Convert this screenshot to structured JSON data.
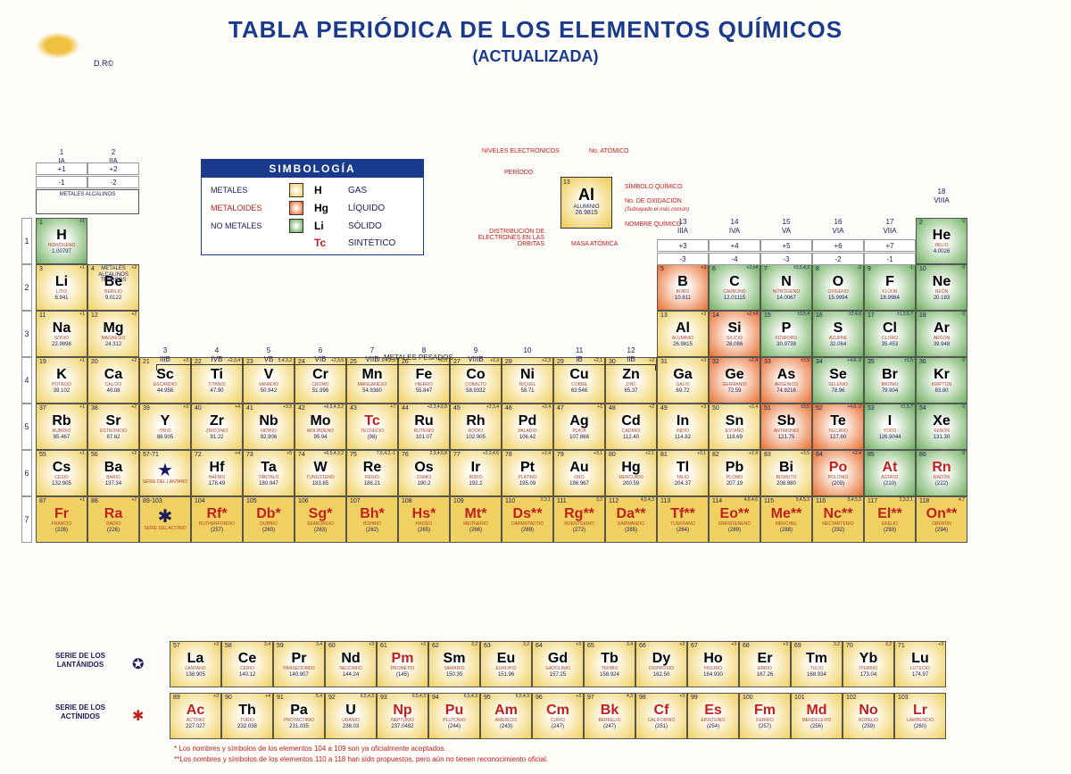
{
  "title": "TABLA PERIÓDICA DE LOS ELEMENTOS QUÍMICOS",
  "subtitle": "(ACTUALIZADA)",
  "dr": "D.R©",
  "legend": {
    "hdr": "SIMBOLOGÍA",
    "rows": [
      {
        "cat": "METALES",
        "swatch": "sw-m",
        "sym": "H",
        "state": "GAS"
      },
      {
        "cat": "METALOIDES",
        "swatch": "sw-ml",
        "sym": "Hg",
        "state": "LÍQUIDO"
      },
      {
        "cat": "NO METALES",
        "swatch": "sw-nm",
        "sym": "Li",
        "state": "SÓLIDO"
      },
      {
        "cat": "",
        "swatch": "",
        "sym": "Tc",
        "state": "SINTÉTICO",
        "red": true
      }
    ]
  },
  "key": {
    "niveles": "NIVELES ELECTRÓNICOS",
    "atomico": "No. ATÓMICO",
    "periodo": "PERÍODO",
    "simbolo": "SÍMBOLO QUÍMICO",
    "oxid": "No. DE OXIDACIÓN",
    "oxid2": "(Subrayado el más común)",
    "dist": "DISTRIBUCIÓN DE ELECTRONES EN LAS ÓRBITAS",
    "masa": "MASA ATÓMICA",
    "nombre": "NOMBRE QUÍMICO",
    "cell": {
      "n": "13",
      "s": "Al",
      "nm": "ALUMINIO",
      "m": "26.9815"
    }
  },
  "groups": [
    "1\nIA",
    "2\nIIA",
    "3\nIIIB",
    "4\nIVB",
    "5\nVB",
    "6\nVIB",
    "7\nVIIB",
    "8",
    "9\nVIIIB",
    "10",
    "11\nIB",
    "12\nIIB",
    "13\nIIIA",
    "14\nIVA",
    "15\nVA",
    "16\nVIA",
    "17\nVIIA",
    "18\nVIIIA"
  ],
  "ox_top": [
    "+1",
    "+2",
    "",
    "",
    "",
    "",
    "",
    "",
    "",
    "",
    "",
    "",
    "+3",
    "+4",
    "+5",
    "+6",
    "+7",
    ""
  ],
  "ox_bot": [
    "-1",
    "-2",
    "",
    "",
    "",
    "",
    "",
    "",
    "",
    "",
    "",
    "",
    "-3",
    "-4",
    "-3",
    "-2",
    "-1",
    ""
  ],
  "side": {
    "metalk": "METALES ALCALINOS",
    "metalk2": "METALES ALCALINOS TÉRREOS",
    "pesados": "METALES PESADOS"
  },
  "elements": [
    [
      {
        "n": 1,
        "s": "H",
        "nm": "HIDRÓGENO",
        "m": "1.00797",
        "c": "nm",
        "ox": "±1"
      },
      null,
      null,
      null,
      null,
      null,
      null,
      null,
      null,
      null,
      null,
      null,
      null,
      null,
      null,
      null,
      null,
      {
        "n": 2,
        "s": "He",
        "nm": "HELIO",
        "m": "4.0026",
        "c": "nm",
        "ox": "0"
      }
    ],
    [
      {
        "n": 3,
        "s": "Li",
        "nm": "LITIO",
        "m": "6.941",
        "c": "m",
        "ox": "+1"
      },
      {
        "n": 4,
        "s": "Be",
        "nm": "BERILIO",
        "m": "9.0122",
        "c": "m",
        "ox": "+2"
      },
      null,
      null,
      null,
      null,
      null,
      null,
      null,
      null,
      null,
      null,
      {
        "n": 5,
        "s": "B",
        "nm": "BORO",
        "m": "10.811",
        "c": "ml",
        "ox": "+3"
      },
      {
        "n": 6,
        "s": "C",
        "nm": "CARBONO",
        "m": "12.01115",
        "c": "nm",
        "ox": "+2,±4"
      },
      {
        "n": 7,
        "s": "N",
        "nm": "NITRÓGENO",
        "m": "14.0067",
        "c": "nm",
        "ox": "±3,5,4,2"
      },
      {
        "n": 8,
        "s": "O",
        "nm": "OXÍGENO",
        "m": "15.9994",
        "c": "nm",
        "ox": "-2"
      },
      {
        "n": 9,
        "s": "F",
        "nm": "FLÚOR",
        "m": "18.9984",
        "c": "nm",
        "ox": "-1"
      },
      {
        "n": 10,
        "s": "Ne",
        "nm": "NEÓN",
        "m": "20.183",
        "c": "nm",
        "ox": "0"
      }
    ],
    [
      {
        "n": 11,
        "s": "Na",
        "nm": "SODIO",
        "m": "22.9898",
        "c": "m",
        "ox": "+1"
      },
      {
        "n": 12,
        "s": "Mg",
        "nm": "MAGNESIO",
        "m": "24.312",
        "c": "m",
        "ox": "+2"
      },
      null,
      null,
      null,
      null,
      null,
      null,
      null,
      null,
      null,
      null,
      {
        "n": 13,
        "s": "Al",
        "nm": "ALUMINIO",
        "m": "26.9815",
        "c": "m",
        "ox": "+3"
      },
      {
        "n": 14,
        "s": "Si",
        "nm": "SILICIO",
        "m": "28.086",
        "c": "ml",
        "ox": "+2,±4"
      },
      {
        "n": 15,
        "s": "P",
        "nm": "FÓSFORO",
        "m": "30.9738",
        "c": "nm",
        "ox": "±3,5,4"
      },
      {
        "n": 16,
        "s": "S",
        "nm": "AZUFRE",
        "m": "32.064",
        "c": "nm",
        "ox": "±2,4,6"
      },
      {
        "n": 17,
        "s": "Cl",
        "nm": "CLORO",
        "m": "35.453",
        "c": "nm",
        "ox": "±1,3,5,7"
      },
      {
        "n": 18,
        "s": "Ar",
        "nm": "ARGÓN",
        "m": "39.948",
        "c": "nm",
        "ox": "0"
      }
    ],
    [
      {
        "n": 19,
        "s": "K",
        "nm": "POTASIO",
        "m": "39.102",
        "c": "m",
        "ox": "+1"
      },
      {
        "n": 20,
        "s": "Ca",
        "nm": "CALCIO",
        "m": "40.08",
        "c": "m",
        "ox": "+2"
      },
      {
        "n": 21,
        "s": "Sc",
        "nm": "ESCANDIO",
        "m": "44.956",
        "c": "m",
        "ox": "+3"
      },
      {
        "n": 22,
        "s": "Ti",
        "nm": "TITANIO",
        "m": "47.90",
        "c": "m",
        "ox": "+2,3,4"
      },
      {
        "n": 23,
        "s": "V",
        "nm": "VANADIO",
        "m": "50.942",
        "c": "m",
        "ox": "5,4,3,2"
      },
      {
        "n": 24,
        "s": "Cr",
        "nm": "CROMO",
        "m": "51.996",
        "c": "m",
        "ox": "+2,3,6"
      },
      {
        "n": 25,
        "s": "Mn",
        "nm": "MANGANESO",
        "m": "54.9380",
        "c": "m",
        "ox": "7,6,4,2,3"
      },
      {
        "n": 26,
        "s": "Fe",
        "nm": "HIERRO",
        "m": "55.847",
        "c": "m",
        "ox": "+2,3"
      },
      {
        "n": 27,
        "s": "Co",
        "nm": "COBALTO",
        "m": "58.9332",
        "c": "m",
        "ox": "+2,3"
      },
      {
        "n": 28,
        "s": "Ni",
        "nm": "NÍQUEL",
        "m": "58.71",
        "c": "m",
        "ox": "+2,3"
      },
      {
        "n": 29,
        "s": "Cu",
        "nm": "COBRE",
        "m": "63.546",
        "c": "m",
        "ox": "+2,1"
      },
      {
        "n": 30,
        "s": "Zn",
        "nm": "ZINC",
        "m": "65.37",
        "c": "m",
        "ox": "+2"
      },
      {
        "n": 31,
        "s": "Ga",
        "nm": "GALIO",
        "m": "69.72",
        "c": "m",
        "ox": "+3"
      },
      {
        "n": 32,
        "s": "Ge",
        "nm": "GERMANIO",
        "m": "72.59",
        "c": "ml",
        "ox": "+2,4"
      },
      {
        "n": 33,
        "s": "As",
        "nm": "ARSÉNICO",
        "m": "74.9216",
        "c": "ml",
        "ox": "±3,5"
      },
      {
        "n": 34,
        "s": "Se",
        "nm": "SELENIO",
        "m": "78.96",
        "c": "nm",
        "ox": "+4,6,-2"
      },
      {
        "n": 35,
        "s": "Br",
        "nm": "BROMO",
        "m": "79.904",
        "c": "nm",
        "ox": "±1,5"
      },
      {
        "n": 36,
        "s": "Kr",
        "nm": "KRIPTÓN",
        "m": "83.80",
        "c": "nm",
        "ox": "0"
      }
    ],
    [
      {
        "n": 37,
        "s": "Rb",
        "nm": "RUBIDIO",
        "m": "85.467",
        "c": "m",
        "ox": "+1"
      },
      {
        "n": 38,
        "s": "Sr",
        "nm": "ESTRONCIO",
        "m": "87.62",
        "c": "m",
        "ox": "+2"
      },
      {
        "n": 39,
        "s": "Y",
        "nm": "ITRIO",
        "m": "88.905",
        "c": "m",
        "ox": "+3"
      },
      {
        "n": 40,
        "s": "Zr",
        "nm": "ZIRCONIO",
        "m": "91.22",
        "c": "m",
        "ox": "+4"
      },
      {
        "n": 41,
        "s": "Nb",
        "nm": "NIOBIO",
        "m": "92.906",
        "c": "m",
        "ox": "+3,5"
      },
      {
        "n": 42,
        "s": "Mo",
        "nm": "MOLIBDENO",
        "m": "95.94",
        "c": "m",
        "ox": "+6,5,4,3,2"
      },
      {
        "n": 43,
        "s": "Tc",
        "nm": "TECNECIO",
        "m": "(98)",
        "c": "m",
        "ox": "+7",
        "red": true
      },
      {
        "n": 44,
        "s": "Ru",
        "nm": "RUTENIO",
        "m": "101.07",
        "c": "m",
        "ox": "+2,3,4,6,8"
      },
      {
        "n": 45,
        "s": "Rh",
        "nm": "RODIO",
        "m": "102.905",
        "c": "m",
        "ox": "+2,3,4"
      },
      {
        "n": 46,
        "s": "Pd",
        "nm": "PALADIO",
        "m": "106.42",
        "c": "m",
        "ox": "+2,4"
      },
      {
        "n": 47,
        "s": "Ag",
        "nm": "PLATA",
        "m": "107.868",
        "c": "m",
        "ox": "+1"
      },
      {
        "n": 48,
        "s": "Cd",
        "nm": "CADMIO",
        "m": "112.40",
        "c": "m",
        "ox": "+2"
      },
      {
        "n": 49,
        "s": "In",
        "nm": "INDIO",
        "m": "114.82",
        "c": "m",
        "ox": "+3"
      },
      {
        "n": 50,
        "s": "Sn",
        "nm": "ESTAÑO",
        "m": "118.69",
        "c": "m",
        "ox": "+2,4"
      },
      {
        "n": 51,
        "s": "Sb",
        "nm": "ANTIMONIO",
        "m": "121.75",
        "c": "ml",
        "ox": "±3,5"
      },
      {
        "n": 52,
        "s": "Te",
        "nm": "TELURIO",
        "m": "127.60",
        "c": "ml",
        "ox": "+4,6,-2"
      },
      {
        "n": 53,
        "s": "I",
        "nm": "YODO",
        "m": "126.9044",
        "c": "nm",
        "ox": "±1,5,7"
      },
      {
        "n": 54,
        "s": "Xe",
        "nm": "XENÓN",
        "m": "131.30",
        "c": "nm",
        "ox": "0"
      }
    ],
    [
      {
        "n": 55,
        "s": "Cs",
        "nm": "CESIO",
        "m": "132.905",
        "c": "m",
        "ox": "+1"
      },
      {
        "n": 56,
        "s": "Ba",
        "nm": "BARIO",
        "m": "137.34",
        "c": "m",
        "ox": "+2"
      },
      {
        "n": "57-71",
        "s": "★",
        "nm": "SERIE DEL LANTANO",
        "m": "",
        "c": "m",
        "star": true
      },
      {
        "n": 72,
        "s": "Hf",
        "nm": "HAFNIO",
        "m": "178.49",
        "c": "m",
        "ox": "+4"
      },
      {
        "n": 73,
        "s": "Ta",
        "nm": "TÁNTALO",
        "m": "180.947",
        "c": "m",
        "ox": "+5"
      },
      {
        "n": 74,
        "s": "W",
        "nm": "TUNGSTENO",
        "m": "183.85",
        "c": "m",
        "ox": "+6,5,4,3,2"
      },
      {
        "n": 75,
        "s": "Re",
        "nm": "RENIO",
        "m": "186.21",
        "c": "m",
        "ox": "7,6,4,2,-1"
      },
      {
        "n": 76,
        "s": "Os",
        "nm": "OSMIO",
        "m": "190.2",
        "c": "m",
        "ox": "2,3,4,6,8"
      },
      {
        "n": 77,
        "s": "Ir",
        "nm": "IRIDIO",
        "m": "192.2",
        "c": "m",
        "ox": "+2,3,4,6"
      },
      {
        "n": 78,
        "s": "Pt",
        "nm": "PLATINO",
        "m": "195.09",
        "c": "m",
        "ox": "+2,4"
      },
      {
        "n": 79,
        "s": "Au",
        "nm": "ORO",
        "m": "196.967",
        "c": "m",
        "ox": "+3,1"
      },
      {
        "n": 80,
        "s": "Hg",
        "nm": "MERCURIO",
        "m": "200.59",
        "c": "m",
        "ox": "+2,1"
      },
      {
        "n": 81,
        "s": "Tl",
        "nm": "TALIO",
        "m": "204.37",
        "c": "m",
        "ox": "+3,1"
      },
      {
        "n": 82,
        "s": "Pb",
        "nm": "PLOMO",
        "m": "207.19",
        "c": "m",
        "ox": "+2,4"
      },
      {
        "n": 83,
        "s": "Bi",
        "nm": "BISMUTO",
        "m": "208.980",
        "c": "m",
        "ox": "+3,5"
      },
      {
        "n": 84,
        "s": "Po",
        "nm": "POLONIO",
        "m": "(209)",
        "c": "ml",
        "ox": "+2,4",
        "red": true
      },
      {
        "n": 85,
        "s": "At",
        "nm": "ASTATO",
        "m": "(210)",
        "c": "nm",
        "ox": "",
        "red": true
      },
      {
        "n": 86,
        "s": "Rn",
        "nm": "RADÓN",
        "m": "(222)",
        "c": "nm",
        "ox": "0",
        "red": true
      }
    ],
    [
      {
        "n": 87,
        "s": "Fr",
        "nm": "FRANCIO",
        "m": "(226)",
        "c": "x",
        "ox": "+1",
        "red": true
      },
      {
        "n": 88,
        "s": "Ra",
        "nm": "RADIO",
        "m": "(226)",
        "c": "x",
        "ox": "+2",
        "red": true
      },
      {
        "n": "89-103",
        "s": "✱",
        "nm": "SERIE DEL ACTINIO",
        "m": "",
        "c": "x",
        "star": true,
        "red": true
      },
      {
        "n": 104,
        "s": "Rf*",
        "nm": "RUTHERFORDIO",
        "m": "(257)",
        "c": "x",
        "red": true
      },
      {
        "n": 105,
        "s": "Db*",
        "nm": "DUBNIO",
        "m": "(260)",
        "c": "x",
        "red": true
      },
      {
        "n": 106,
        "s": "Sg*",
        "nm": "SEABORGIO",
        "m": "(263)",
        "c": "x",
        "red": true
      },
      {
        "n": 107,
        "s": "Bh*",
        "nm": "BOHRIO",
        "m": "(262)",
        "c": "x",
        "red": true
      },
      {
        "n": 108,
        "s": "Hs*",
        "nm": "HASSIO",
        "m": "(265)",
        "c": "x",
        "red": true
      },
      {
        "n": 109,
        "s": "Mt*",
        "nm": "MEITNERIO",
        "m": "(266)",
        "c": "x",
        "red": true
      },
      {
        "n": 110,
        "s": "Ds**",
        "nm": "DARMSTADTIO",
        "m": "(269)",
        "c": "x",
        "ox": "2,3,1",
        "red": true
      },
      {
        "n": 111,
        "s": "Rg**",
        "nm": "ROENTGENIO",
        "m": "(272)",
        "c": "x",
        "ox": "3,2",
        "red": true
      },
      {
        "n": 112,
        "s": "Da**",
        "nm": "DARWANZIO",
        "m": "(285)",
        "c": "x",
        "ox": "4,5,4,3",
        "red": true
      },
      {
        "n": 113,
        "s": "Tf**",
        "nm": "TUSFRANO",
        "m": "(284)",
        "c": "x",
        "ox": "",
        "red": true
      },
      {
        "n": 114,
        "s": "Eo**",
        "nm": "ERRISTENENO",
        "m": "(289)",
        "c": "x",
        "ox": "4,6,4,6",
        "red": true
      },
      {
        "n": 115,
        "s": "Me**",
        "nm": "MERCHEL",
        "m": "(288)",
        "c": "x",
        "ox": "5,4,5,3",
        "red": true
      },
      {
        "n": 116,
        "s": "Nc**",
        "nm": "NECTARTENIO",
        "m": "(292)",
        "c": "x",
        "ox": "5,4,5,3",
        "red": true
      },
      {
        "n": 117,
        "s": "El**",
        "nm": "EFELIO",
        "m": "(293)",
        "c": "x",
        "ox": "2,3,2,1",
        "red": true
      },
      {
        "n": 118,
        "s": "On**",
        "nm": "OBERÓN",
        "m": "(294)",
        "c": "x",
        "ox": "4,7",
        "red": true
      }
    ]
  ],
  "lanth": [
    {
      "n": 57,
      "s": "La",
      "nm": "LANTANO",
      "m": "138.905",
      "c": "m",
      "ox": "+3"
    },
    {
      "n": 58,
      "s": "Ce",
      "nm": "CERIO",
      "m": "140.12",
      "c": "m",
      "ox": "3,4"
    },
    {
      "n": 59,
      "s": "Pr",
      "nm": "PRASEODIMIO",
      "m": "140.907",
      "c": "m",
      "ox": "3,4"
    },
    {
      "n": 60,
      "s": "Nd",
      "nm": "NEODIMIO",
      "m": "144.24",
      "c": "m",
      "ox": "+3"
    },
    {
      "n": 61,
      "s": "Pm",
      "nm": "PROMETIO",
      "m": "(145)",
      "c": "m",
      "ox": "+3",
      "red": true
    },
    {
      "n": 62,
      "s": "Sm",
      "nm": "SAMARIO",
      "m": "150.35",
      "c": "m",
      "ox": "3,2"
    },
    {
      "n": 63,
      "s": "Eu",
      "nm": "EUROPIO",
      "m": "151.96",
      "c": "m",
      "ox": "3,2"
    },
    {
      "n": 64,
      "s": "Gd",
      "nm": "GADOLINIO",
      "m": "157.25",
      "c": "m",
      "ox": "+3"
    },
    {
      "n": 65,
      "s": "Tb",
      "nm": "TERBIO",
      "m": "158.924",
      "c": "m",
      "ox": "3,4"
    },
    {
      "n": 66,
      "s": "Dy",
      "nm": "DISPROSIO",
      "m": "162.50",
      "c": "m",
      "ox": "+3"
    },
    {
      "n": 67,
      "s": "Ho",
      "nm": "HOLMIO",
      "m": "164.930",
      "c": "m",
      "ox": "+3"
    },
    {
      "n": 68,
      "s": "Er",
      "nm": "ERBIO",
      "m": "167.26",
      "c": "m",
      "ox": "+3"
    },
    {
      "n": 69,
      "s": "Tm",
      "nm": "TULIO",
      "m": "168.934",
      "c": "m",
      "ox": "3,2"
    },
    {
      "n": 70,
      "s": "Yb",
      "nm": "ITERBIO",
      "m": "173.04",
      "c": "m",
      "ox": "3,2"
    },
    {
      "n": 71,
      "s": "Lu",
      "nm": "LUTECIO",
      "m": "174.97",
      "c": "m",
      "ox": "+3"
    }
  ],
  "act": [
    {
      "n": 89,
      "s": "Ac",
      "nm": "ACTINIO",
      "m": "227.027",
      "c": "m",
      "ox": "+3",
      "red": true
    },
    {
      "n": 90,
      "s": "Th",
      "nm": "TORIO",
      "m": "232.038",
      "c": "m",
      "ox": "+4"
    },
    {
      "n": 91,
      "s": "Pa",
      "nm": "PROTACTINIO",
      "m": "231.035",
      "c": "m",
      "ox": "5,4"
    },
    {
      "n": 92,
      "s": "U",
      "nm": "URANIO",
      "m": "238.03",
      "c": "m",
      "ox": "6,5,4,3"
    },
    {
      "n": 93,
      "s": "Np",
      "nm": "NEPTUNIO",
      "m": "237.0482",
      "c": "m",
      "ox": "6,5,4,3",
      "red": true
    },
    {
      "n": 94,
      "s": "Pu",
      "nm": "PLUTONIO",
      "m": "(244)",
      "c": "m",
      "ox": "6,5,4,3",
      "red": true
    },
    {
      "n": 95,
      "s": "Am",
      "nm": "AMERICIO",
      "m": "(243)",
      "c": "m",
      "ox": "6,5,4,3",
      "red": true
    },
    {
      "n": 96,
      "s": "Cm",
      "nm": "CURIO",
      "m": "(247)",
      "c": "m",
      "ox": "+3",
      "red": true
    },
    {
      "n": 97,
      "s": "Bk",
      "nm": "BERKELIO",
      "m": "(247)",
      "c": "m",
      "ox": "4,3",
      "red": true
    },
    {
      "n": 98,
      "s": "Cf",
      "nm": "CALIFORNIO",
      "m": "(251)",
      "c": "m",
      "ox": "+3",
      "red": true
    },
    {
      "n": 99,
      "s": "Es",
      "nm": "EINSTENIO",
      "m": "(254)",
      "c": "m",
      "ox": "",
      "red": true
    },
    {
      "n": 100,
      "s": "Fm",
      "nm": "FERMIO",
      "m": "(257)",
      "c": "m",
      "ox": "",
      "red": true
    },
    {
      "n": 101,
      "s": "Md",
      "nm": "MENDELEVIO",
      "m": "(256)",
      "c": "m",
      "ox": "",
      "red": true
    },
    {
      "n": 102,
      "s": "No",
      "nm": "NOBELIO",
      "m": "(259)",
      "c": "m",
      "ox": "",
      "red": true
    },
    {
      "n": 103,
      "s": "Lr",
      "nm": "LAWRENCIO",
      "m": "(260)",
      "c": "m",
      "ox": "",
      "red": true
    }
  ],
  "series": {
    "lanth": "SERIE DE LOS LANTÁNIDOS",
    "act": "SERIE DE LOS ACTÍNIDOS"
  },
  "footnote1": "* Los nombres y símbolos de los elementos 104 a 109 son ya oficialmente aceptados.",
  "footnote2": "**Los nombres y símbolos de los elementos 110 a 118 han sido propuestos, pero aún no tienen reconocimiento oficial.",
  "colors": {
    "m": "#f0d060",
    "ml": "#e87030",
    "nm": "#70b060",
    "x": "#f0d060",
    "title": "#1a3a8c",
    "red": "#c02020"
  }
}
